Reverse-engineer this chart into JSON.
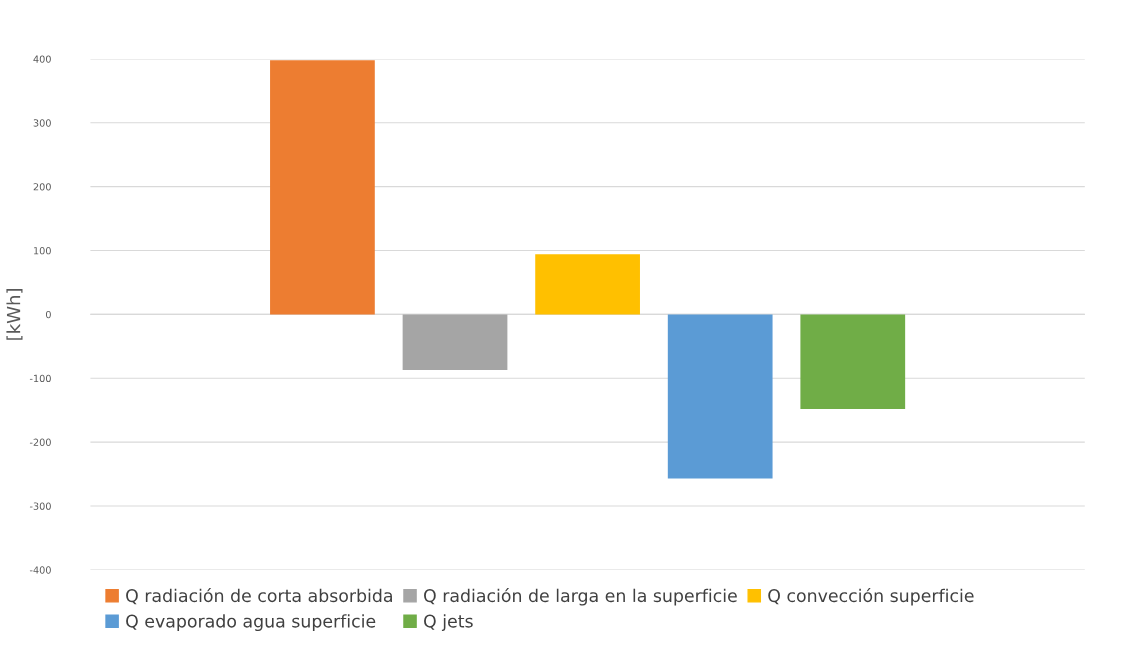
{
  "chart_data": {
    "type": "bar",
    "ylabel": "[kWh]",
    "categories": [
      null
    ],
    "series": [
      {
        "name": "Q radiación de corta absorbida",
        "color": "#ed7d31",
        "values": [
          398
        ]
      },
      {
        "name": "Q radiación de larga en la superficie",
        "color": "#a5a5a5",
        "values": [
          -87
        ]
      },
      {
        "name": "Q convección superficie",
        "color": "#ffc000",
        "values": [
          94
        ]
      },
      {
        "name": "Q evaporado agua superficie",
        "color": "#5b9bd5",
        "values": [
          -257
        ]
      },
      {
        "name": "Q jets",
        "color": "#70ad47",
        "values": [
          -148
        ]
      }
    ],
    "ylim": [
      -400,
      400
    ],
    "yticks": [
      -400,
      -300,
      -200,
      -100,
      0,
      100,
      200,
      300,
      400
    ],
    "grid": "y",
    "legend": "bottom"
  }
}
